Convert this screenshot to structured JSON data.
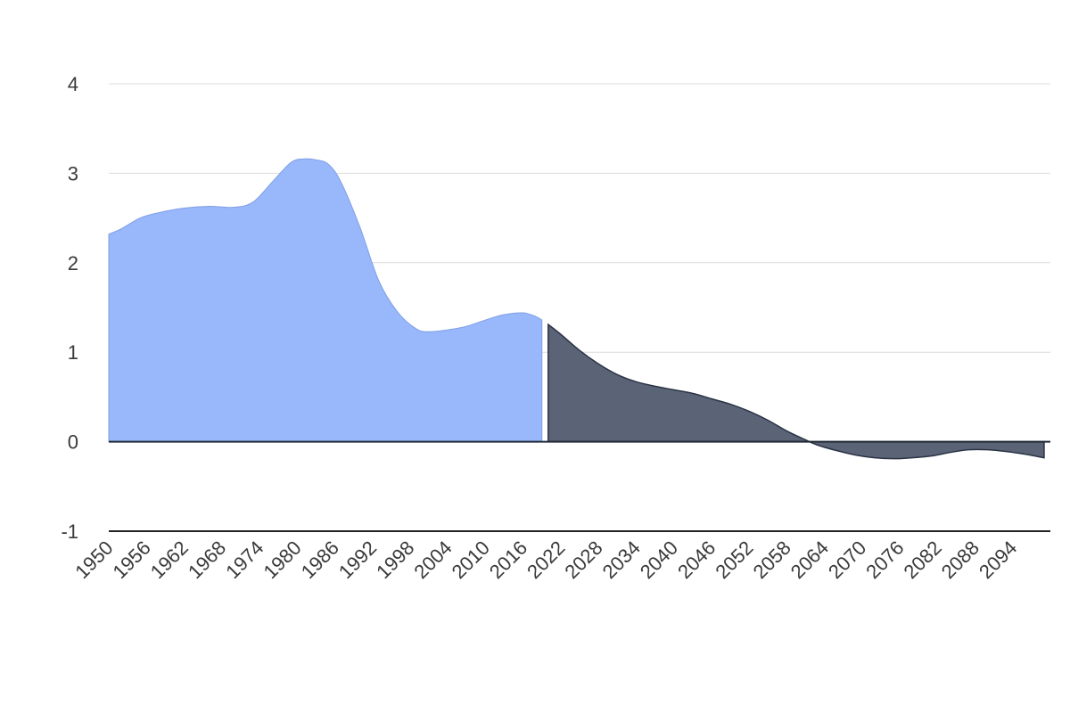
{
  "chart_data": {
    "type": "area",
    "title": "",
    "xlabel": "",
    "ylabel": "",
    "xlim": [
      1950,
      2100
    ],
    "ylim": [
      -1,
      4
    ],
    "yticks": [
      4,
      3,
      2,
      1,
      0,
      -1
    ],
    "ytick_labels": [
      "4",
      "3",
      "2",
      "1",
      "0",
      "-1"
    ],
    "xticks": [
      1950,
      1956,
      1962,
      1968,
      1974,
      1980,
      1986,
      1992,
      1998,
      2004,
      2010,
      2016,
      2022,
      2028,
      2034,
      2040,
      2046,
      2052,
      2058,
      2064,
      2070,
      2076,
      2082,
      2088,
      2094
    ],
    "xtick_labels": [
      "1950",
      "1956",
      "1962",
      "1968",
      "1974",
      "1980",
      "1986",
      "1992",
      "1998",
      "2004",
      "2010",
      "2016",
      "2022",
      "2028",
      "2034",
      "2040",
      "2046",
      "2052",
      "2058",
      "2064",
      "2070",
      "2076",
      "2082",
      "2088",
      "2094"
    ],
    "grid": true,
    "legend": "none",
    "series": [
      {
        "color": "#99b8fb",
        "x": [
          1950,
          1952,
          1955,
          1958,
          1962,
          1966,
          1970,
          1973,
          1976,
          1979,
          1981,
          1983,
          1985,
          1987,
          1990,
          1993,
          1996,
          1999,
          2001,
          2004,
          2007,
          2010,
          2013,
          2016,
          2018,
          2019
        ],
        "values": [
          2.32,
          2.38,
          2.5,
          2.56,
          2.61,
          2.63,
          2.62,
          2.68,
          2.9,
          3.12,
          3.16,
          3.15,
          3.1,
          2.9,
          2.4,
          1.8,
          1.45,
          1.26,
          1.23,
          1.25,
          1.29,
          1.36,
          1.42,
          1.44,
          1.4,
          1.36
        ]
      },
      {
        "color": "#5a6476",
        "x": [
          2020,
          2022,
          2025,
          2028,
          2031,
          2034,
          2037,
          2040,
          2043,
          2046,
          2049,
          2052,
          2055,
          2058,
          2061,
          2063,
          2066,
          2069,
          2072,
          2075,
          2078,
          2081,
          2084,
          2087,
          2090,
          2093,
          2096,
          2099
        ],
        "values": [
          1.31,
          1.2,
          1.02,
          0.87,
          0.75,
          0.67,
          0.62,
          0.58,
          0.54,
          0.48,
          0.42,
          0.34,
          0.24,
          0.12,
          0.02,
          -0.04,
          -0.1,
          -0.15,
          -0.18,
          -0.19,
          -0.18,
          -0.16,
          -0.12,
          -0.09,
          -0.09,
          -0.11,
          -0.14,
          -0.18
        ]
      }
    ]
  }
}
